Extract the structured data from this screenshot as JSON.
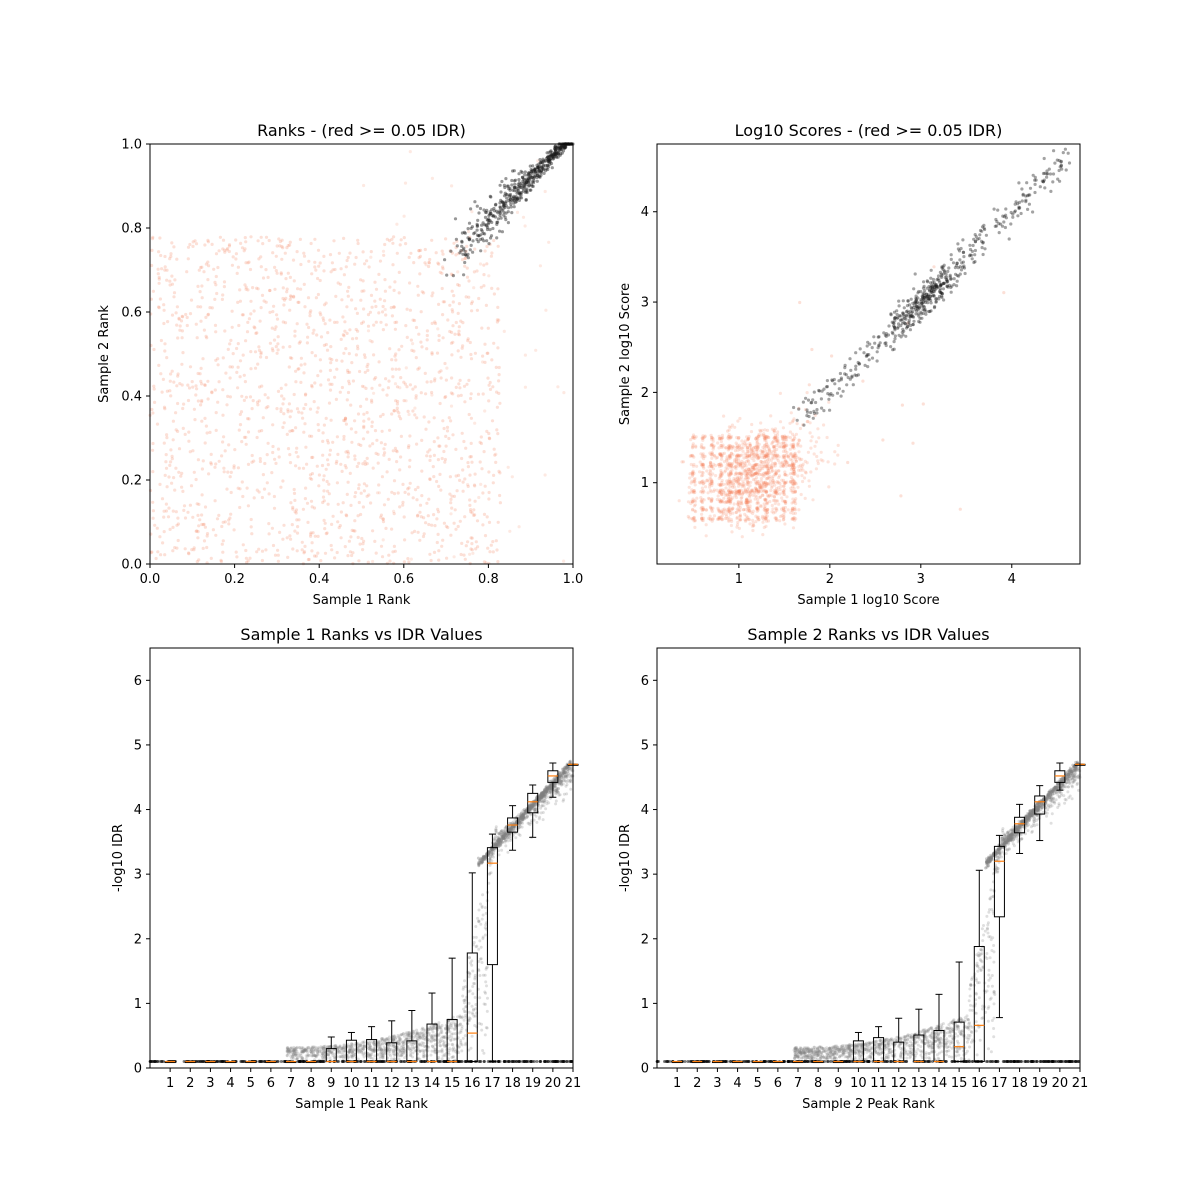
{
  "chart_data": [
    {
      "type": "scatter",
      "title": "Ranks - (red >= 0.05 IDR)",
      "xlabel": "Sample 1 Rank",
      "ylabel": "Sample 2 Rank",
      "xlim": [
        0.0,
        1.0
      ],
      "ylim": [
        0.0,
        1.0
      ],
      "x_ticks": [
        "0.0",
        "0.2",
        "0.4",
        "0.6",
        "0.8",
        "1.0"
      ],
      "y_ticks": [
        "0.0",
        "0.2",
        "0.4",
        "0.6",
        "0.8",
        "1.0"
      ],
      "series": [
        {
          "color": "#f4845f",
          "description_of_spread": "uniform",
          "x_range": [
            0.0,
            0.83
          ],
          "y_range": [
            0.0,
            0.78
          ],
          "approx_count": 1600
        },
        {
          "color": "#1a1a1a",
          "trend": "diagonal",
          "x_range": [
            0.72,
            1.0
          ],
          "y_range": [
            0.73,
            1.0
          ],
          "approx_count": 500
        }
      ]
    },
    {
      "type": "scatter",
      "title": "Log10 Scores - (red >= 0.05 IDR)",
      "xlabel": "Sample 1 log10 Score",
      "ylabel": "Sample 2 log10 Score",
      "xlim": [
        0.1,
        4.75
      ],
      "ylim": [
        0.1,
        4.75
      ],
      "x_ticks": [
        "1",
        "2",
        "3",
        "4"
      ],
      "y_ticks": [
        "1",
        "2",
        "3",
        "4"
      ],
      "series": [
        {
          "color": "#f4845f",
          "cluster_center": [
            1.2,
            1.1
          ],
          "x_range": [
            0.3,
            2.1
          ],
          "y_range": [
            0.4,
            2.0
          ],
          "approx_count": 1600
        },
        {
          "color": "#1a1a1a",
          "trend": "diagonal",
          "x_range": [
            1.7,
            4.6
          ],
          "y_range": [
            1.6,
            4.6
          ],
          "approx_count": 550
        }
      ]
    },
    {
      "type": "box",
      "title": "Sample 1 Ranks vs IDR Values",
      "xlabel": "Sample 1 Peak Rank",
      "ylabel": "-log10 IDR",
      "xlim": [
        0,
        21
      ],
      "ylim": [
        0,
        6.5
      ],
      "categories": [
        "1",
        "2",
        "3",
        "4",
        "5",
        "6",
        "7",
        "8",
        "9",
        "10",
        "11",
        "12",
        "13",
        "14",
        "15",
        "16",
        "17",
        "18",
        "19",
        "20",
        "21"
      ],
      "y_ticks": [
        "0",
        "1",
        "2",
        "3",
        "4",
        "5",
        "6"
      ],
      "boxes": [
        {
          "pos": 1,
          "wlo": 0.1,
          "q1": 0.1,
          "med": 0.1,
          "q3": 0.1,
          "whi": 0.1
        },
        {
          "pos": 2,
          "wlo": 0.1,
          "q1": 0.1,
          "med": 0.1,
          "q3": 0.1,
          "whi": 0.1
        },
        {
          "pos": 3,
          "wlo": 0.1,
          "q1": 0.1,
          "med": 0.1,
          "q3": 0.1,
          "whi": 0.1
        },
        {
          "pos": 4,
          "wlo": 0.1,
          "q1": 0.1,
          "med": 0.1,
          "q3": 0.1,
          "whi": 0.1
        },
        {
          "pos": 5,
          "wlo": 0.1,
          "q1": 0.1,
          "med": 0.1,
          "q3": 0.1,
          "whi": 0.1
        },
        {
          "pos": 6,
          "wlo": 0.1,
          "q1": 0.1,
          "med": 0.1,
          "q3": 0.1,
          "whi": 0.1
        },
        {
          "pos": 7,
          "wlo": 0.1,
          "q1": 0.1,
          "med": 0.1,
          "q3": 0.1,
          "whi": 0.1
        },
        {
          "pos": 8,
          "wlo": 0.1,
          "q1": 0.1,
          "med": 0.1,
          "q3": 0.1,
          "whi": 0.1
        },
        {
          "pos": 9,
          "wlo": 0.1,
          "q1": 0.1,
          "med": 0.1,
          "q3": 0.3,
          "whi": 0.48
        },
        {
          "pos": 10,
          "wlo": 0.1,
          "q1": 0.1,
          "med": 0.1,
          "q3": 0.43,
          "whi": 0.55
        },
        {
          "pos": 11,
          "wlo": 0.1,
          "q1": 0.1,
          "med": 0.1,
          "q3": 0.44,
          "whi": 0.64
        },
        {
          "pos": 12,
          "wlo": 0.1,
          "q1": 0.1,
          "med": 0.1,
          "q3": 0.39,
          "whi": 0.73
        },
        {
          "pos": 13,
          "wlo": 0.1,
          "q1": 0.1,
          "med": 0.1,
          "q3": 0.42,
          "whi": 0.89
        },
        {
          "pos": 14,
          "wlo": 0.1,
          "q1": 0.1,
          "med": 0.1,
          "q3": 0.68,
          "whi": 1.16
        },
        {
          "pos": 15,
          "wlo": 0.1,
          "q1": 0.1,
          "med": 0.1,
          "q3": 0.75,
          "whi": 1.7
        },
        {
          "pos": 16,
          "wlo": 0.1,
          "q1": 0.1,
          "med": 0.54,
          "q3": 1.78,
          "whi": 3.02
        },
        {
          "pos": 17,
          "wlo": 0.1,
          "q1": 1.6,
          "med": 3.17,
          "q3": 3.41,
          "whi": 3.62
        },
        {
          "pos": 18,
          "wlo": 3.37,
          "q1": 3.65,
          "med": 3.76,
          "q3": 3.87,
          "whi": 4.06
        },
        {
          "pos": 19,
          "wlo": 3.57,
          "q1": 3.95,
          "med": 4.12,
          "q3": 4.25,
          "whi": 4.38
        },
        {
          "pos": 20,
          "wlo": 4.19,
          "q1": 4.42,
          "med": 4.52,
          "q3": 4.6,
          "whi": 4.72
        },
        {
          "pos": 21,
          "wlo": 4.7,
          "q1": 4.7,
          "med": 4.7,
          "q3": 4.7,
          "whi": 4.7
        }
      ],
      "scatter_series": {
        "color": "#808080",
        "description": "per-peak -log10 IDR",
        "x_range": [
          6.8,
          21
        ],
        "y_range": [
          0.1,
          4.72
        ]
      }
    },
    {
      "type": "box",
      "title": "Sample 2 Ranks vs IDR Values",
      "xlabel": "Sample 2 Peak Rank",
      "ylabel": "-log10 IDR",
      "xlim": [
        0,
        21
      ],
      "ylim": [
        0,
        6.5
      ],
      "categories": [
        "1",
        "2",
        "3",
        "4",
        "5",
        "6",
        "7",
        "8",
        "9",
        "10",
        "11",
        "12",
        "13",
        "14",
        "15",
        "16",
        "17",
        "18",
        "19",
        "20",
        "21"
      ],
      "y_ticks": [
        "0",
        "1",
        "2",
        "3",
        "4",
        "5",
        "6"
      ],
      "boxes": [
        {
          "pos": 1,
          "wlo": 0.1,
          "q1": 0.1,
          "med": 0.1,
          "q3": 0.1,
          "whi": 0.1
        },
        {
          "pos": 2,
          "wlo": 0.1,
          "q1": 0.1,
          "med": 0.1,
          "q3": 0.1,
          "whi": 0.1
        },
        {
          "pos": 3,
          "wlo": 0.1,
          "q1": 0.1,
          "med": 0.1,
          "q3": 0.1,
          "whi": 0.1
        },
        {
          "pos": 4,
          "wlo": 0.1,
          "q1": 0.1,
          "med": 0.1,
          "q3": 0.1,
          "whi": 0.1
        },
        {
          "pos": 5,
          "wlo": 0.1,
          "q1": 0.1,
          "med": 0.1,
          "q3": 0.1,
          "whi": 0.1
        },
        {
          "pos": 6,
          "wlo": 0.1,
          "q1": 0.1,
          "med": 0.1,
          "q3": 0.1,
          "whi": 0.1
        },
        {
          "pos": 7,
          "wlo": 0.1,
          "q1": 0.1,
          "med": 0.1,
          "q3": 0.1,
          "whi": 0.1
        },
        {
          "pos": 8,
          "wlo": 0.1,
          "q1": 0.1,
          "med": 0.1,
          "q3": 0.1,
          "whi": 0.1
        },
        {
          "pos": 9,
          "wlo": 0.1,
          "q1": 0.1,
          "med": 0.1,
          "q3": 0.1,
          "whi": 0.1
        },
        {
          "pos": 10,
          "wlo": 0.1,
          "q1": 0.1,
          "med": 0.1,
          "q3": 0.42,
          "whi": 0.55
        },
        {
          "pos": 11,
          "wlo": 0.1,
          "q1": 0.1,
          "med": 0.1,
          "q3": 0.47,
          "whi": 0.64
        },
        {
          "pos": 12,
          "wlo": 0.1,
          "q1": 0.1,
          "med": 0.1,
          "q3": 0.4,
          "whi": 0.77
        },
        {
          "pos": 13,
          "wlo": 0.1,
          "q1": 0.1,
          "med": 0.1,
          "q3": 0.51,
          "whi": 0.91
        },
        {
          "pos": 14,
          "wlo": 0.1,
          "q1": 0.1,
          "med": 0.1,
          "q3": 0.58,
          "whi": 1.14
        },
        {
          "pos": 15,
          "wlo": 0.1,
          "q1": 0.1,
          "med": 0.33,
          "q3": 0.71,
          "whi": 1.64
        },
        {
          "pos": 16,
          "wlo": 0.1,
          "q1": 0.1,
          "med": 0.66,
          "q3": 1.88,
          "whi": 3.06
        },
        {
          "pos": 17,
          "wlo": 0.78,
          "q1": 2.34,
          "med": 3.2,
          "q3": 3.43,
          "whi": 3.6
        },
        {
          "pos": 18,
          "wlo": 3.32,
          "q1": 3.64,
          "med": 3.78,
          "q3": 3.88,
          "whi": 4.08
        },
        {
          "pos": 19,
          "wlo": 3.52,
          "q1": 3.93,
          "med": 4.12,
          "q3": 4.21,
          "whi": 4.37
        },
        {
          "pos": 20,
          "wlo": 4.3,
          "q1": 4.42,
          "med": 4.52,
          "q3": 4.6,
          "whi": 4.72
        },
        {
          "pos": 21,
          "wlo": 4.7,
          "q1": 4.7,
          "med": 4.7,
          "q3": 4.7,
          "whi": 4.7
        }
      ],
      "scatter_series": {
        "color": "#808080",
        "description": "per-peak -log10 IDR",
        "x_range": [
          6.8,
          21
        ],
        "y_range": [
          0.1,
          4.72
        ]
      }
    }
  ]
}
